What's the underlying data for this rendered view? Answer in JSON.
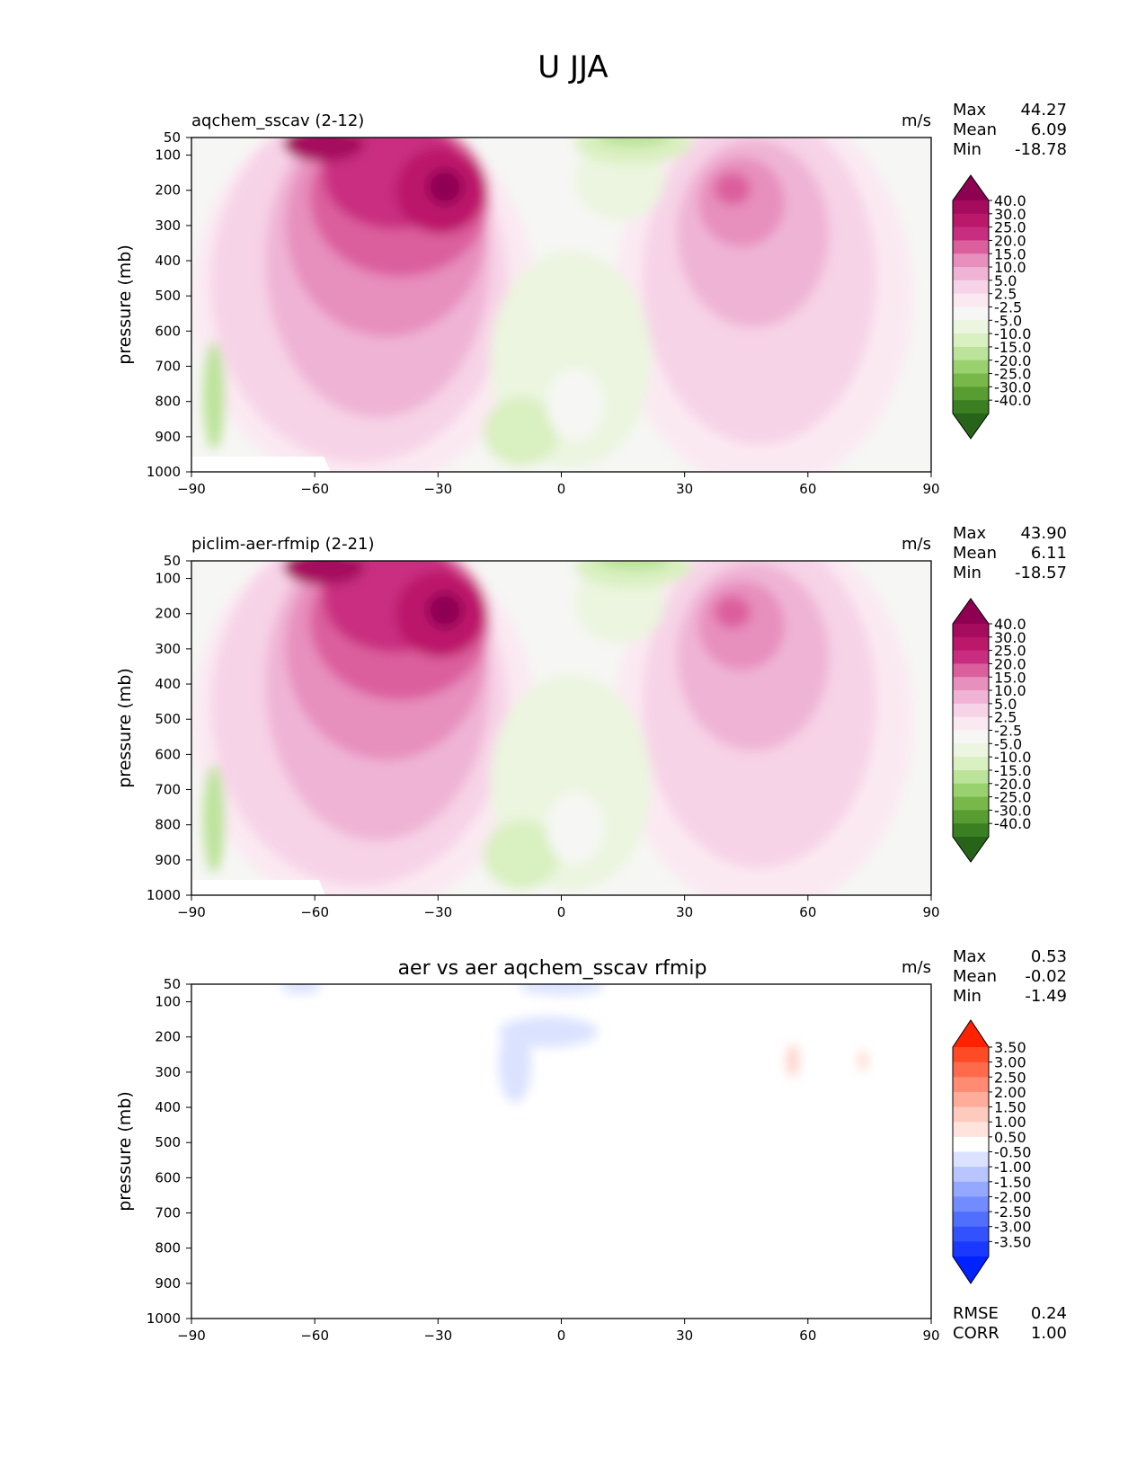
{
  "figure": {
    "title": "U JJA"
  },
  "shared": {
    "ylabel": "pressure (mb)",
    "units": "m/s",
    "x_ticks": [
      "−90",
      "−60",
      "−30",
      "0",
      "30",
      "60",
      "90"
    ],
    "y_ticks": [
      "50",
      "100",
      "200",
      "300",
      "400",
      "500",
      "600",
      "700",
      "800",
      "900",
      "1000"
    ],
    "stat_labels": {
      "max": "Max",
      "mean": "Mean",
      "min": "Min",
      "rmse": "RMSE",
      "corr": "CORR"
    },
    "model_colorbar": {
      "labels": [
        "40.0",
        "30.0",
        "25.0",
        "20.0",
        "15.0",
        "10.0",
        "5.0",
        "2.5",
        "-2.5",
        "-5.0",
        "-10.0",
        "-15.0",
        "-20.0",
        "-25.0",
        "-30.0",
        "-40.0"
      ],
      "colors": [
        "#8e0152",
        "#a50c5e",
        "#bc186a",
        "#c92d80",
        "#db5f9d",
        "#e78fbd",
        "#efb4d5",
        "#f7d3e7",
        "#fbe9f2",
        "#f6f6f4",
        "#ebf5df",
        "#d9f0c0",
        "#bce39a",
        "#99d16f",
        "#78b848",
        "#579d32",
        "#3a7f22",
        "#276419"
      ]
    },
    "diff_colorbar": {
      "labels": [
        "3.50",
        "3.00",
        "2.50",
        "2.00",
        "1.50",
        "1.00",
        "0.50",
        "-0.50",
        "-1.00",
        "-1.50",
        "-2.00",
        "-2.50",
        "-3.00",
        "-3.50"
      ],
      "colors": [
        "#ff2200",
        "#ff4a26",
        "#ff6a4d",
        "#ff8b73",
        "#ffac9a",
        "#ffcabe",
        "#ffe3dc",
        "#ffffff",
        "#dae2ff",
        "#b8c5ff",
        "#95a8ff",
        "#728bff",
        "#516fff",
        "#3352ff",
        "#1a38ff",
        "#0022ff"
      ]
    }
  },
  "chart_data": [
    {
      "type": "heatmap",
      "subtitle": "aqchem_sscav (2-12)",
      "units": "m/s",
      "xlim": [
        -90,
        90
      ],
      "ylim": [
        1000,
        50
      ],
      "stats": {
        "max": "44.27",
        "mean": "6.09",
        "min": "-18.78"
      }
    },
    {
      "type": "heatmap",
      "subtitle": "piclim-aer-rfmip (2-21)",
      "units": "m/s",
      "xlim": [
        -90,
        90
      ],
      "ylim": [
        1000,
        50
      ],
      "stats": {
        "max": "43.90",
        "mean": "6.11",
        "min": "-18.57"
      }
    },
    {
      "type": "heatmap",
      "title": "aer vs aer aqchem_sscav rfmip",
      "units": "m/s",
      "xlim": [
        -90,
        90
      ],
      "ylim": [
        1000,
        50
      ],
      "stats": {
        "max": "0.53",
        "mean": "-0.02",
        "min": "-1.49",
        "rmse": "0.24",
        "corr": "1.00"
      }
    }
  ]
}
